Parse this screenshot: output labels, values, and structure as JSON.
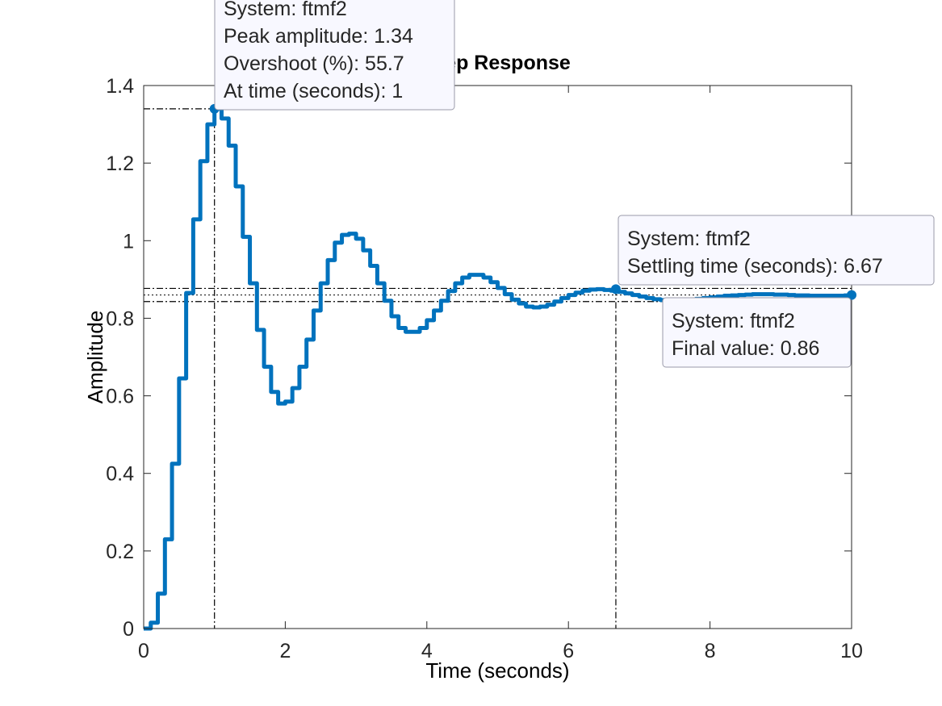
{
  "chart_data": {
    "type": "line",
    "title": "Step Response",
    "xlabel": "Time (seconds)",
    "ylabel": "Amplitude",
    "xlim": [
      0,
      10
    ],
    "ylim": [
      0,
      1.4
    ],
    "xticks": [
      0,
      2,
      4,
      6,
      8,
      10
    ],
    "xtick_labels": [
      "0",
      "2",
      "4",
      "6",
      "8",
      "10"
    ],
    "yticks": [
      0,
      0.2,
      0.4,
      0.6,
      0.8,
      1,
      1.2,
      1.4
    ],
    "ytick_labels": [
      "0",
      "0.2",
      "0.4",
      "0.6",
      "0.8",
      "1",
      "1.2",
      "1.4"
    ],
    "grid": false,
    "line_style": "stairs",
    "series": [
      {
        "name": "ftmf2",
        "color": "#0072BD",
        "x": [
          0,
          0.1,
          0.2,
          0.3,
          0.4,
          0.5,
          0.6,
          0.7,
          0.8,
          0.9,
          1.0,
          1.1,
          1.2,
          1.3,
          1.4,
          1.5,
          1.6,
          1.7,
          1.8,
          1.9,
          2.0,
          2.1,
          2.2,
          2.3,
          2.4,
          2.5,
          2.6,
          2.7,
          2.8,
          2.9,
          3.0,
          3.1,
          3.2,
          3.3,
          3.4,
          3.5,
          3.6,
          3.7,
          3.8,
          3.9,
          4.0,
          4.1,
          4.2,
          4.3,
          4.4,
          4.5,
          4.6,
          4.7,
          4.8,
          4.9,
          5.0,
          5.1,
          5.2,
          5.3,
          5.4,
          5.5,
          5.6,
          5.7,
          5.8,
          5.9,
          6.0,
          6.1,
          6.2,
          6.3,
          6.4,
          6.5,
          6.6,
          6.7,
          6.8,
          6.9,
          7.0,
          7.1,
          7.2,
          7.3,
          7.4,
          7.5,
          7.6,
          7.7,
          7.8,
          7.9,
          8.0,
          8.1,
          8.2,
          8.3,
          8.4,
          8.5,
          8.6,
          8.7,
          8.8,
          8.9,
          9.0,
          9.1,
          9.2,
          9.3,
          9.4,
          9.5,
          9.6,
          9.7,
          9.8,
          9.9,
          10.0
        ],
        "y": [
          0,
          0.015,
          0.09,
          0.23,
          0.425,
          0.645,
          0.865,
          1.055,
          1.205,
          1.3,
          1.34,
          1.315,
          1.245,
          1.14,
          1.01,
          0.89,
          0.77,
          0.675,
          0.61,
          0.58,
          0.585,
          0.62,
          0.675,
          0.745,
          0.82,
          0.89,
          0.95,
          0.995,
          1.015,
          1.018,
          1.005,
          0.975,
          0.935,
          0.89,
          0.845,
          0.805,
          0.775,
          0.765,
          0.765,
          0.775,
          0.795,
          0.82,
          0.845,
          0.87,
          0.89,
          0.905,
          0.912,
          0.912,
          0.905,
          0.893,
          0.878,
          0.862,
          0.848,
          0.838,
          0.83,
          0.828,
          0.83,
          0.835,
          0.843,
          0.852,
          0.86,
          0.866,
          0.871,
          0.874,
          0.875,
          0.873,
          0.871,
          0.868,
          0.864,
          0.86,
          0.856,
          0.852,
          0.849,
          0.847,
          0.846,
          0.846,
          0.847,
          0.848,
          0.85,
          0.852,
          0.854,
          0.856,
          0.858,
          0.859,
          0.86,
          0.861,
          0.862,
          0.862,
          0.862,
          0.861,
          0.861,
          0.86,
          0.859,
          0.859,
          0.858,
          0.858,
          0.858,
          0.858,
          0.858,
          0.859,
          0.86
        ]
      }
    ],
    "annotations": {
      "peak": {
        "x": 1.0,
        "y": 1.34,
        "lines": [
          "System: ftmf2",
          "Peak amplitude: 1.34",
          "Overshoot (%): 55.7",
          "At time (seconds): 1"
        ]
      },
      "settling": {
        "x": 6.67,
        "y": 0.875,
        "lines": [
          "System: ftmf2",
          "Settling time (seconds): 6.67"
        ]
      },
      "final": {
        "x": 10,
        "y": 0.86,
        "lines": [
          "System: ftmf2",
          "Final value: 0.86"
        ]
      },
      "settling_band": [
        0.843,
        0.877
      ],
      "final_value": 0.86
    }
  }
}
